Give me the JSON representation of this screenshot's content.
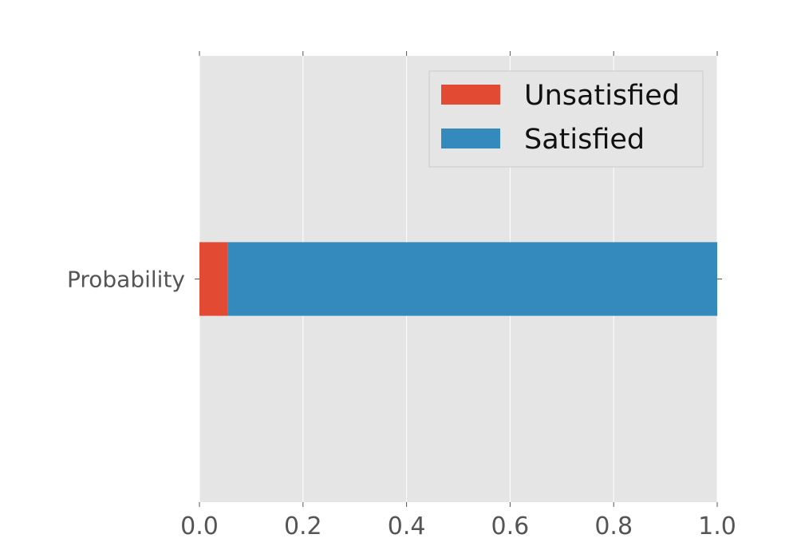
{
  "chart_data": {
    "type": "bar",
    "orientation": "horizontal",
    "stacked": true,
    "categories": [
      "Probability"
    ],
    "series": [
      {
        "name": "Unsatisfied",
        "values": [
          0.055
        ],
        "color": "#E24A33"
      },
      {
        "name": "Satisfied",
        "values": [
          0.945
        ],
        "color": "#348ABD"
      }
    ],
    "xlim": [
      0.0,
      1.0
    ],
    "xticks": [
      "0.0",
      "0.2",
      "0.4",
      "0.6",
      "0.8",
      "1.0"
    ],
    "grid": true,
    "legend_position": "top-right",
    "plot_background": "#E5E5E5"
  }
}
